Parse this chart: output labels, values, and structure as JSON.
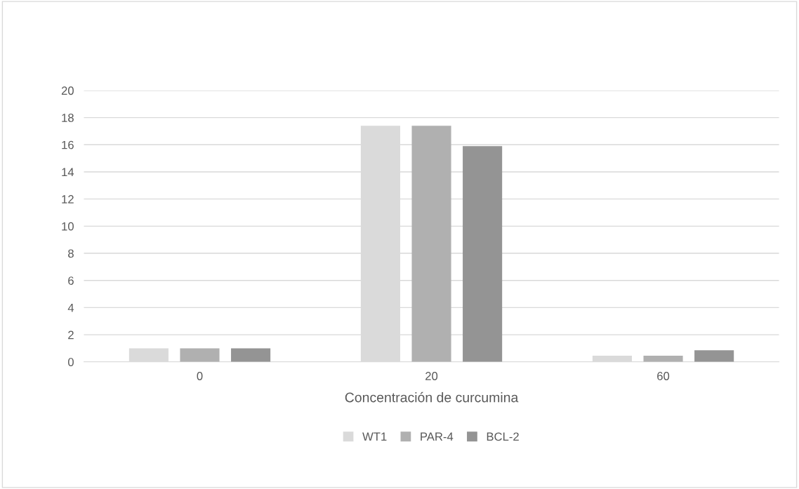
{
  "chart_data": {
    "type": "bar",
    "xlabel": "Concentración de curcumina",
    "categories": [
      "0",
      "20",
      "60"
    ],
    "series": [
      {
        "name": "WT1",
        "color": "#dadada",
        "values": [
          1,
          17.4,
          0.45
        ]
      },
      {
        "name": "PAR-4",
        "color": "#b0b0b0",
        "values": [
          1,
          17.4,
          0.45
        ]
      },
      {
        "name": "BCL-2",
        "color": "#949494",
        "values": [
          1,
          15.9,
          0.85
        ]
      }
    ],
    "ylim": [
      0,
      20
    ],
    "yticks": [
      0,
      2,
      4,
      6,
      8,
      10,
      12,
      14,
      16,
      18,
      20
    ],
    "grid": "y",
    "legend": "bottom"
  }
}
